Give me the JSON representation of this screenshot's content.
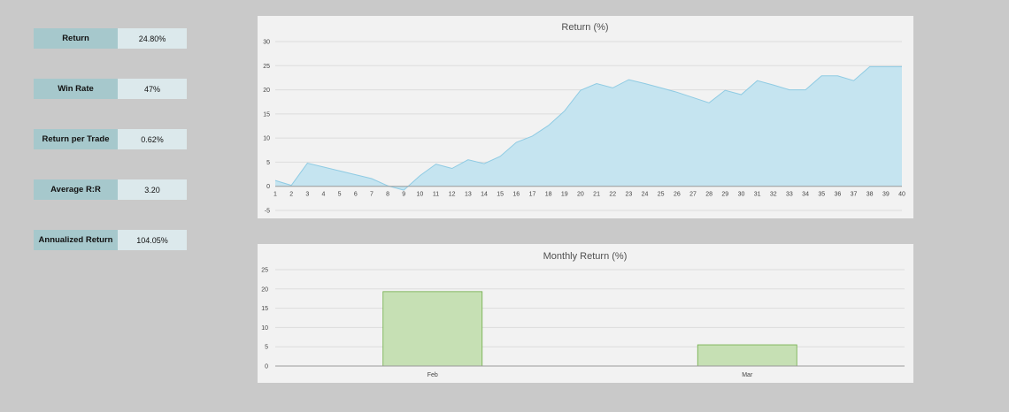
{
  "stats": [
    {
      "label": "Return",
      "value": "24.80%"
    },
    {
      "label": "Win Rate",
      "value": "47%"
    },
    {
      "label": "Return per Trade",
      "value": "0.62%"
    },
    {
      "label": "Average R:R",
      "value": "3.20"
    },
    {
      "label": "Annualized Return",
      "value": "104.05%"
    }
  ],
  "colors": {
    "area_fill": "#c5e4f0",
    "area_line": "#8fcbe3",
    "bar_fill": "#c6e0b4",
    "bar_stroke": "#70ad47"
  },
  "chart_data": [
    {
      "type": "area",
      "title": "Return (%)",
      "x": [
        1,
        2,
        3,
        4,
        5,
        6,
        7,
        8,
        9,
        10,
        11,
        12,
        13,
        14,
        15,
        16,
        17,
        18,
        19,
        20,
        21,
        22,
        23,
        24,
        25,
        26,
        27,
        28,
        29,
        30,
        31,
        32,
        33,
        34,
        35,
        36,
        37,
        38,
        39,
        40
      ],
      "values": [
        1.2,
        0.2,
        4.8,
        4.0,
        3.2,
        2.4,
        1.6,
        0.1,
        -0.8,
        2.2,
        4.6,
        3.7,
        5.5,
        4.7,
        6.2,
        9.1,
        10.4,
        12.6,
        15.6,
        19.9,
        21.3,
        20.4,
        22.1,
        21.3,
        20.4,
        19.5,
        18.4,
        17.3,
        19.9,
        19.0,
        21.9,
        21.0,
        20.0,
        20.0,
        22.9,
        22.9,
        21.9,
        24.8,
        24.8,
        24.8
      ],
      "ylim": [
        -5,
        30
      ],
      "yticks": [
        -5,
        0,
        5,
        10,
        15,
        20,
        25,
        30
      ],
      "grid": true
    },
    {
      "type": "bar",
      "title": "Monthly Return (%)",
      "categories": [
        "Feb",
        "Mar"
      ],
      "values": [
        19.3,
        5.5
      ],
      "ylim": [
        0,
        25
      ],
      "yticks": [
        0,
        5,
        10,
        15,
        20,
        25
      ],
      "grid": true
    }
  ]
}
